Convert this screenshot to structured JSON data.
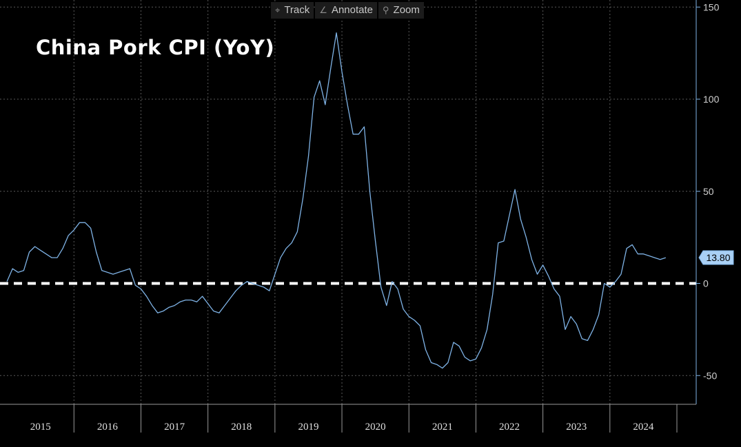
{
  "toolbar": {
    "track": {
      "label": "Track",
      "icon": "crosshair-icon"
    },
    "annotate": {
      "label": "Annotate",
      "icon": "pencil-icon"
    },
    "zoom": {
      "label": "Zoom",
      "icon": "magnifier-icon"
    }
  },
  "chart_data": {
    "type": "line",
    "title": "China Pork CPI (YoY)",
    "line_color": "#7fb3e6",
    "reference_line": {
      "value": 0,
      "style": "dashed",
      "color": "#ffffff"
    },
    "last_value_label": "13.80",
    "ylim": [
      -65,
      152
    ],
    "y_ticks": [
      150,
      100,
      50,
      0,
      -50
    ],
    "y_tick_labels": [
      "150",
      "100",
      "50",
      "0",
      "-50"
    ],
    "x_range": [
      "2014-12",
      "2025-01"
    ],
    "year_labels": [
      "2015",
      "2016",
      "2017",
      "2018",
      "2019",
      "2020",
      "2021",
      "2022",
      "2023",
      "2024"
    ],
    "grid": true,
    "series": [
      {
        "x": [
          "2015-01",
          "2015-02",
          "2015-03",
          "2015-04",
          "2015-05",
          "2015-06",
          "2015-07",
          "2015-08",
          "2015-09",
          "2015-10",
          "2015-11",
          "2015-12",
          "2016-01",
          "2016-02",
          "2016-03",
          "2016-04",
          "2016-05",
          "2016-06",
          "2016-07",
          "2016-08",
          "2016-09",
          "2016-10",
          "2016-11",
          "2016-12",
          "2017-01",
          "2017-02",
          "2017-03",
          "2017-04",
          "2017-05",
          "2017-06",
          "2017-07",
          "2017-08",
          "2017-09",
          "2017-10",
          "2017-11",
          "2017-12",
          "2018-01",
          "2018-02",
          "2018-03",
          "2018-04",
          "2018-05",
          "2018-06",
          "2018-07",
          "2018-08",
          "2018-09",
          "2018-10",
          "2018-11",
          "2018-12",
          "2019-01",
          "2019-02",
          "2019-03",
          "2019-04",
          "2019-05",
          "2019-06",
          "2019-07",
          "2019-08",
          "2019-09",
          "2019-10",
          "2019-11",
          "2019-12",
          "2020-01",
          "2020-02",
          "2020-03",
          "2020-04",
          "2020-05",
          "2020-06",
          "2020-07",
          "2020-08",
          "2020-09",
          "2020-10",
          "2020-11",
          "2020-12",
          "2021-01",
          "2021-02",
          "2021-03",
          "2021-04",
          "2021-05",
          "2021-06",
          "2021-07",
          "2021-08",
          "2021-09",
          "2021-10",
          "2021-11",
          "2021-12",
          "2022-01",
          "2022-02",
          "2022-03",
          "2022-04",
          "2022-05",
          "2022-06",
          "2022-07",
          "2022-08",
          "2022-09",
          "2022-10",
          "2022-11",
          "2022-12",
          "2023-01",
          "2023-02",
          "2023-03",
          "2023-04",
          "2023-05",
          "2023-06",
          "2023-07",
          "2023-08",
          "2023-09",
          "2023-10",
          "2023-11",
          "2023-12",
          "2024-01",
          "2024-02",
          "2024-03",
          "2024-04",
          "2024-05",
          "2024-06",
          "2024-07",
          "2024-08",
          "2024-09",
          "2024-10",
          "2024-11"
        ],
        "values": [
          1,
          8,
          6,
          7,
          17,
          20,
          18,
          16,
          14,
          14,
          19,
          26,
          29,
          33,
          33,
          30,
          17,
          7,
          6,
          5,
          6,
          7,
          8,
          -1,
          -3,
          -7,
          -12,
          -16,
          -15,
          -13,
          -12,
          -10,
          -9,
          -9,
          -10,
          -7,
          -11,
          -15,
          -16,
          -12,
          -8,
          -4,
          -1,
          1,
          0,
          -1,
          -2,
          -4,
          5,
          14,
          19,
          22,
          28,
          46,
          69,
          101,
          110,
          97,
          117,
          136,
          115,
          97,
          81,
          81,
          85,
          50,
          23,
          -2,
          -12,
          1,
          -3,
          -14,
          -18,
          -20,
          -23,
          -36,
          -43,
          -44,
          -46,
          -43,
          -32,
          -34,
          -40,
          -42,
          -41,
          -35,
          -25,
          -6,
          22,
          23,
          37,
          51,
          35,
          25,
          13,
          5,
          10,
          4,
          -3,
          -7,
          -25,
          -18,
          -22,
          -30,
          -31,
          -25,
          -17,
          0,
          -2,
          1,
          5,
          19,
          21,
          16,
          16,
          15,
          14,
          13,
          14
        ]
      }
    ]
  }
}
